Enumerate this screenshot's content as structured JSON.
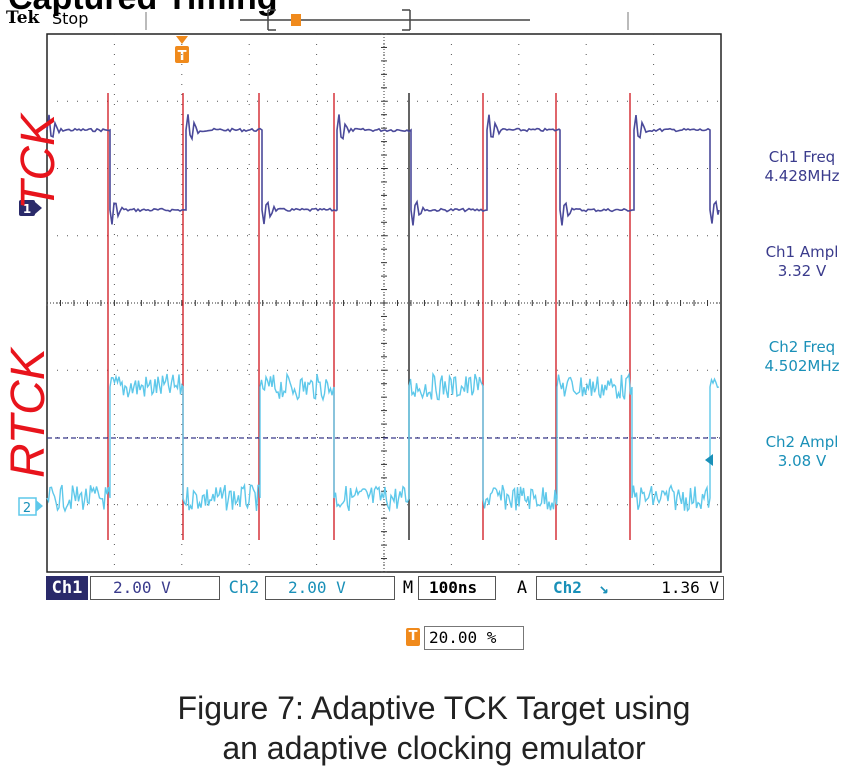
{
  "page": {
    "title_fragment": "Captured Timing",
    "brand": "Tek",
    "acq_state": "Stop",
    "trigger_marker": "T"
  },
  "signals": {
    "tck_label": "TCK",
    "rtck_label": "RTCK",
    "ch1_marker": "1",
    "ch2_marker": "2"
  },
  "measurements": {
    "ch1_freq_label": "Ch1 Freq",
    "ch1_freq_value": "4.428MHz",
    "ch1_ampl_label": "Ch1 Ampl",
    "ch1_ampl_value": "3.32 V",
    "ch2_freq_label": "Ch2 Freq",
    "ch2_freq_value": "4.502MHz",
    "ch2_ampl_label": "Ch2 Ampl",
    "ch2_ampl_value": "3.08 V"
  },
  "status_bar": {
    "ch1_tag": "Ch1",
    "ch1_scale": "2.00 V",
    "ch2_tag": "Ch2",
    "ch2_scale": "2.00 V",
    "m_tag": "M",
    "timebase": "100ns",
    "a_tag": "A",
    "trig_source": "Ch2",
    "trig_slope": "↘",
    "trig_level": "1.36 V"
  },
  "trigger_position": {
    "icon": "T",
    "value": "20.00 %"
  },
  "caption": {
    "line1": "Figure 7: Adaptive TCK Target using",
    "line2": "an adaptive clocking emulator"
  },
  "colors": {
    "ch1": "#4b4a9a",
    "ch2": "#5ec8ea",
    "markers": "#d0141c",
    "trigger": "#f08a1c"
  }
}
